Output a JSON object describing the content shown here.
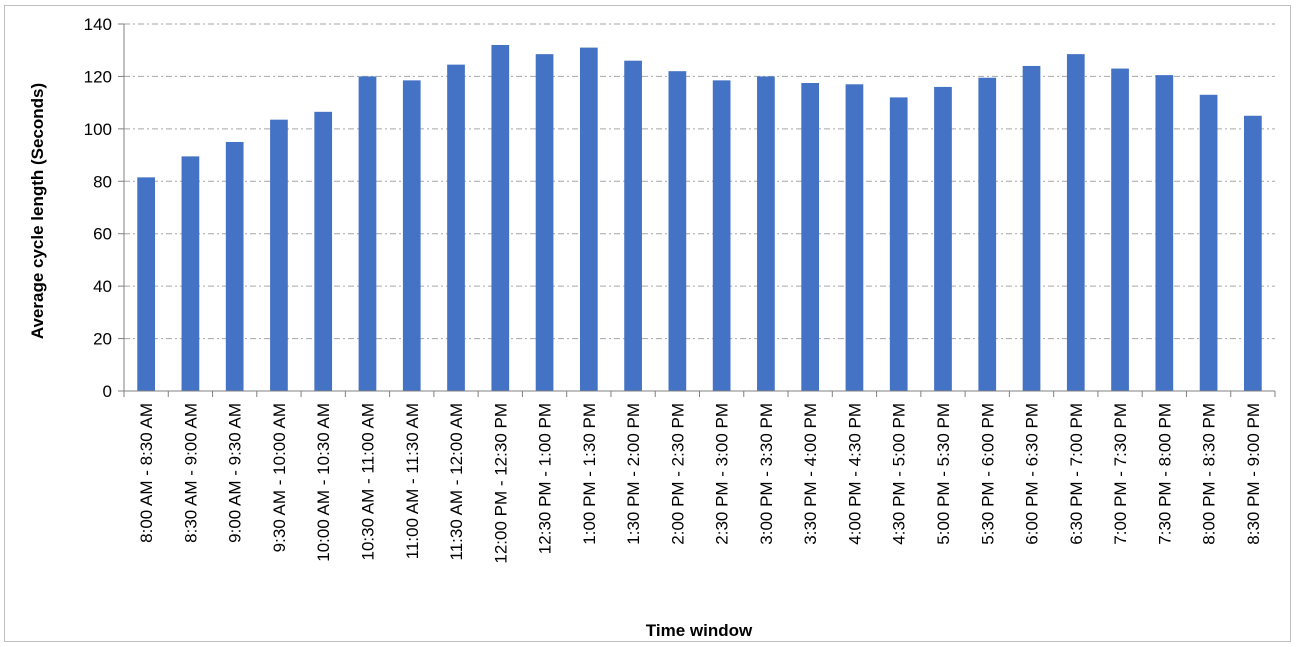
{
  "chart_data": {
    "type": "bar",
    "title": "",
    "xlabel": "Time window",
    "ylabel": "Average cycle length (Seconds)",
    "ylim": [
      0,
      140
    ],
    "yticks": [
      0,
      20,
      40,
      60,
      80,
      100,
      120,
      140
    ],
    "grid": true,
    "legend": "none",
    "bar_color": "#4472c4",
    "gridline_color": "#a6a6a6",
    "categories": [
      "8:00 AM - 8:30 AM",
      "8:30 AM - 9:00 AM",
      "9:00 AM - 9:30 AM",
      "9:30 AM - 10:00 AM",
      "10:00 AM - 10:30 AM",
      "10:30 AM - 11:00 AM",
      "11:00 AM - 11:30 AM",
      "11:30 AM - 12:00 AM",
      "12:00 PM - 12:30 PM",
      "12:30 PM - 1:00 PM",
      "1:00 PM - 1:30 PM",
      "1:30 PM - 2:00 PM",
      "2:00 PM - 2:30 PM",
      "2:30 PM - 3:00 PM",
      "3:00 PM - 3:30 PM",
      "3:30 PM - 4:00 PM",
      "4:00 PM - 4:30 PM",
      "4:30 PM - 5:00 PM",
      "5:00 PM - 5:30 PM",
      "5:30 PM - 6:00 PM",
      "6:00 PM - 6:30 PM",
      "6:30 PM - 7:00 PM",
      "7:00 PM - 7:30 PM",
      "7:30 PM - 8:00 PM",
      "8:00 PM - 8:30 PM",
      "8:30 PM - 9:00 PM"
    ],
    "values": [
      81.5,
      89.5,
      95,
      103.5,
      106.5,
      120,
      118.5,
      124.5,
      132,
      128.5,
      131,
      126,
      122,
      118.5,
      120,
      117.5,
      117,
      112,
      116,
      119.5,
      124,
      128.5,
      123,
      120.5,
      113,
      105
    ]
  }
}
